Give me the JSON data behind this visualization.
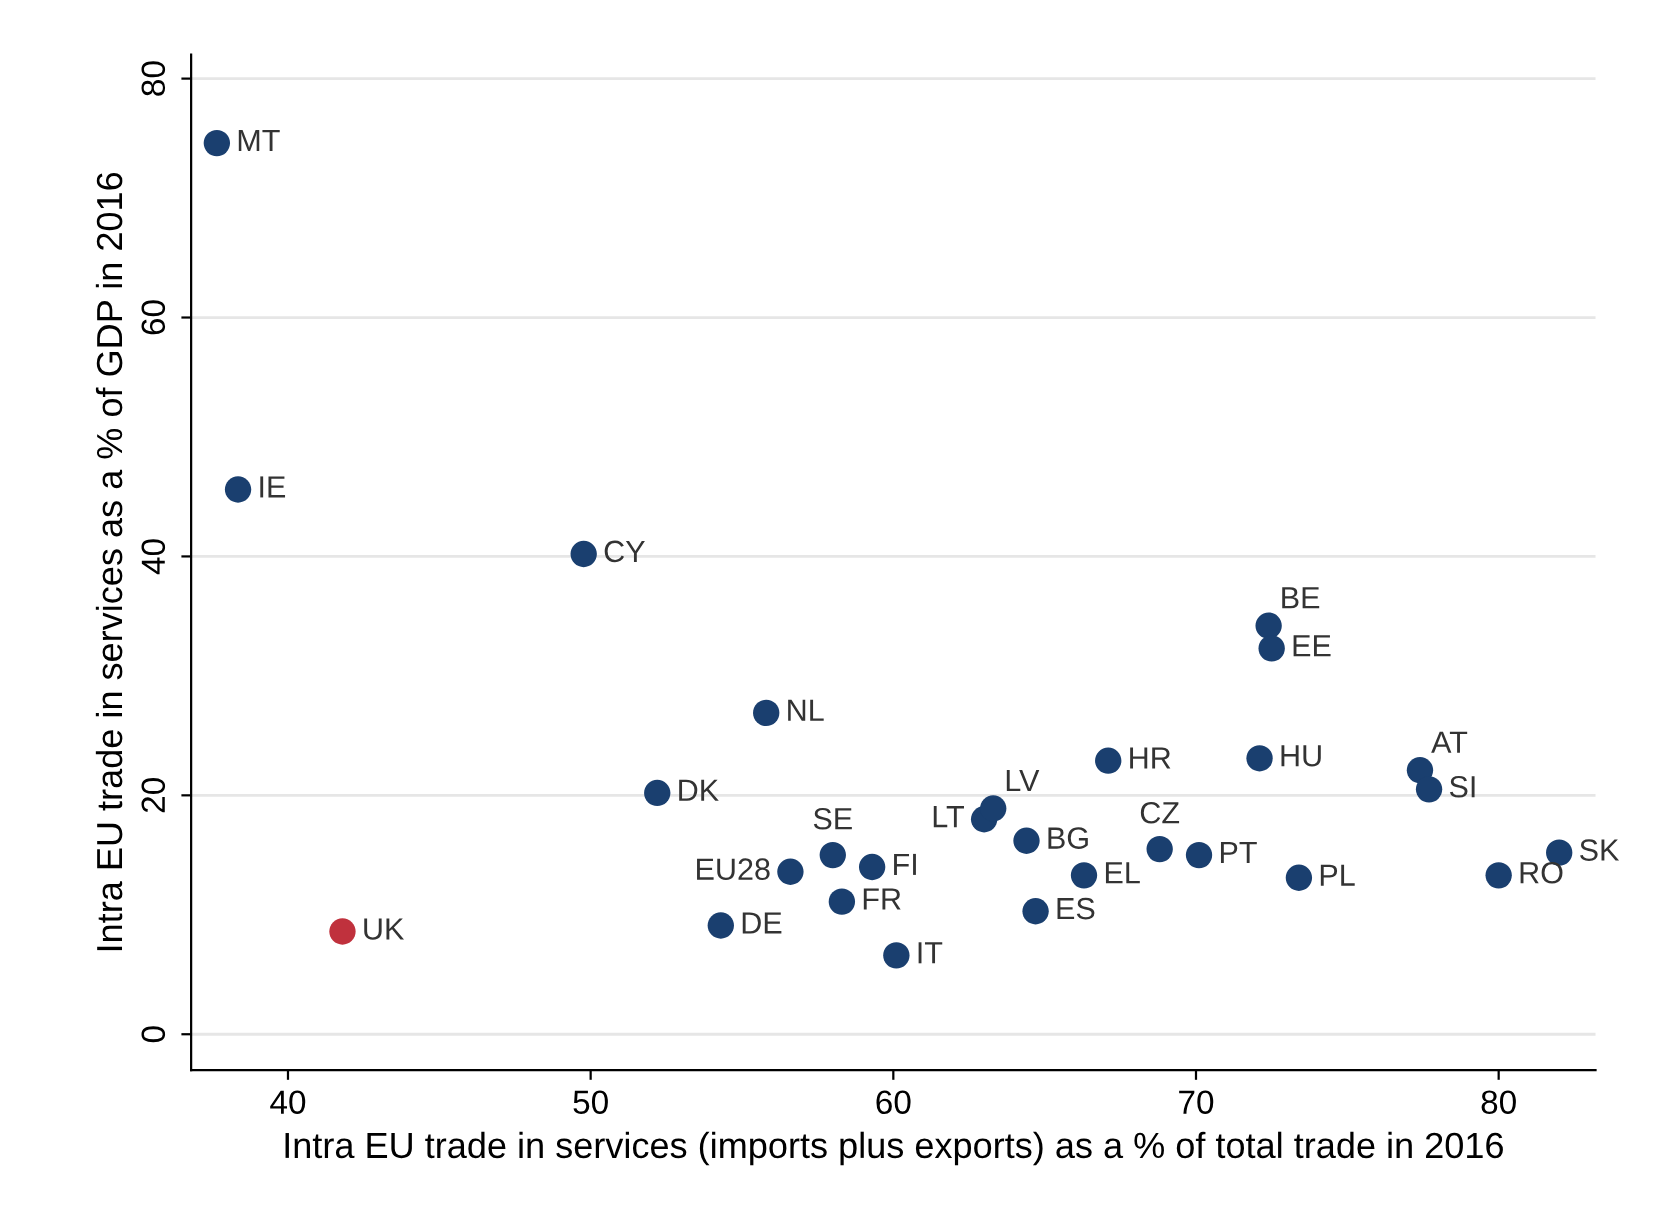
{
  "chart_data": {
    "type": "scatter",
    "xlabel": "Intra EU trade in services (imports plus exports) as a % of total trade in 2016",
    "ylabel": "Intra EU trade in services as a % of GDP in 2016",
    "x": [
      37.65,
      38.35,
      49.77,
      55.8,
      52.2,
      41.8,
      54.3,
      56.6,
      58.0,
      59.3,
      58.3,
      60.1,
      63.0,
      63.3,
      64.4,
      66.3,
      64.7,
      67.1,
      68.8,
      70.1,
      73.4,
      72.1,
      72.4,
      72.5,
      77.4,
      77.7,
      80.0,
      82.0
    ],
    "values": [
      74.6,
      45.6,
      40.2,
      26.9,
      20.2,
      8.6,
      9.1,
      13.6,
      15.0,
      14.0,
      11.1,
      6.6,
      18.0,
      18.9,
      16.2,
      13.3,
      10.3,
      22.9,
      15.5,
      15.0,
      13.1,
      23.1,
      34.2,
      32.3,
      22.1,
      20.5,
      13.3,
      15.2
    ],
    "colors": [
      "#1a3f6f",
      "#1a3f6f",
      "#1a3f6f",
      "#1a3f6f",
      "#1a3f6f",
      "#c0313d",
      "#1a3f6f",
      "#1a3f6f",
      "#1a3f6f",
      "#1a3f6f",
      "#1a3f6f",
      "#1a3f6f",
      "#1a3f6f",
      "#1a3f6f",
      "#1a3f6f",
      "#1a3f6f",
      "#1a3f6f",
      "#1a3f6f",
      "#1a3f6f",
      "#1a3f6f",
      "#1a3f6f",
      "#1a3f6f",
      "#1a3f6f",
      "#1a3f6f",
      "#1a3f6f",
      "#1a3f6f",
      "#1a3f6f",
      "#1a3f6f"
    ],
    "annotations": [
      {
        "text": "MT",
        "x": 37.65,
        "y": 74.6
      },
      {
        "text": "IE",
        "x": 38.35,
        "y": 45.6
      },
      {
        "text": "CY",
        "x": 49.77,
        "y": 40.2
      },
      {
        "text": "NL",
        "x": 55.8,
        "y": 26.9
      },
      {
        "text": "DK",
        "x": 52.2,
        "y": 20.2
      },
      {
        "text": "UK",
        "x": 41.8,
        "y": 8.6
      },
      {
        "text": "DE",
        "x": 54.3,
        "y": 9.1
      },
      {
        "text": "EU28",
        "x": 56.6,
        "y": 13.6
      },
      {
        "text": "SE",
        "x": 58.0,
        "y": 15.0
      },
      {
        "text": "FI",
        "x": 59.3,
        "y": 14.0
      },
      {
        "text": "FR",
        "x": 58.3,
        "y": 11.1
      },
      {
        "text": "IT",
        "x": 60.1,
        "y": 6.6
      },
      {
        "text": "LT",
        "x": 63.0,
        "y": 18.0
      },
      {
        "text": "LV",
        "x": 63.3,
        "y": 18.9
      },
      {
        "text": "BG",
        "x": 64.4,
        "y": 16.2
      },
      {
        "text": "EL",
        "x": 66.3,
        "y": 13.3
      },
      {
        "text": "ES",
        "x": 64.7,
        "y": 10.3
      },
      {
        "text": "HR",
        "x": 67.1,
        "y": 22.9
      },
      {
        "text": "CZ",
        "x": 68.8,
        "y": 15.5
      },
      {
        "text": "PT",
        "x": 70.1,
        "y": 15.0
      },
      {
        "text": "PL",
        "x": 73.4,
        "y": 13.1
      },
      {
        "text": "HU",
        "x": 72.1,
        "y": 23.1
      },
      {
        "text": "BE",
        "x": 72.4,
        "y": 34.2
      },
      {
        "text": "EE",
        "x": 72.5,
        "y": 32.3
      },
      {
        "text": "AT",
        "x": 77.4,
        "y": 22.1
      },
      {
        "text": "SI",
        "x": 77.7,
        "y": 20.5
      },
      {
        "text": "RO",
        "x": 80.0,
        "y": 13.3
      },
      {
        "text": "SK",
        "x": 82.0,
        "y": 15.2
      }
    ],
    "xlim": [
      36.8,
      83.2
    ],
    "ylim": [
      -3,
      82
    ],
    "xticks": [
      40,
      50,
      60,
      70,
      80
    ],
    "yticks": [
      0,
      20,
      40,
      60,
      80
    ],
    "grid": "y",
    "marker": "circle"
  }
}
